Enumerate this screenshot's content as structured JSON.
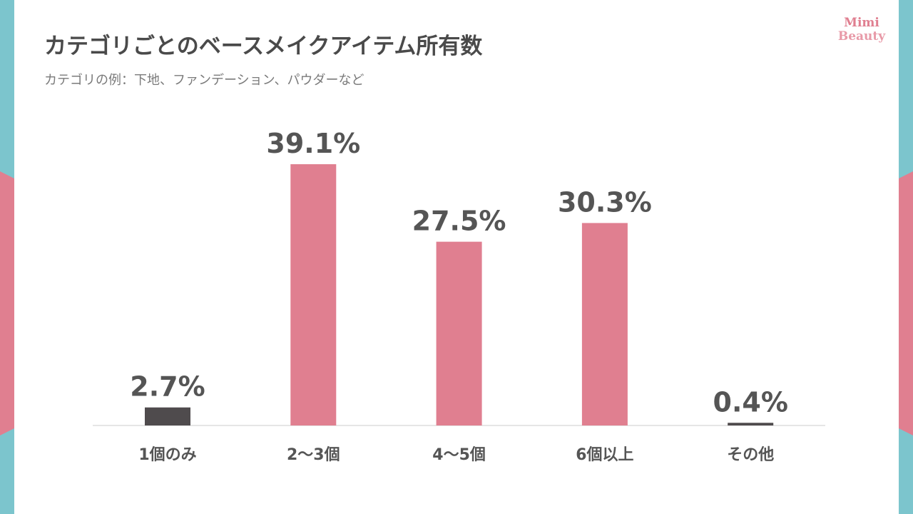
{
  "logo": [
    "Mimi",
    "Beauty"
  ],
  "chart_data": {
    "type": "bar",
    "title": "カテゴリごとのベースメイクアイテム所有数",
    "subtitle": "カテゴリの例：下地、ファンデーション、パウダーなど",
    "categories": [
      "1個のみ",
      "2〜3個",
      "4〜5個",
      "6個以上",
      "その他"
    ],
    "values": [
      2.7,
      39.1,
      27.5,
      30.3,
      0.4
    ],
    "value_labels": [
      "2.7%",
      "39.1%",
      "27.5%",
      "30.3%",
      "0.4%"
    ],
    "colors": [
      "#4f4b4d",
      "#e07f90",
      "#e07f90",
      "#e07f90",
      "#4f4b4d"
    ]
  }
}
